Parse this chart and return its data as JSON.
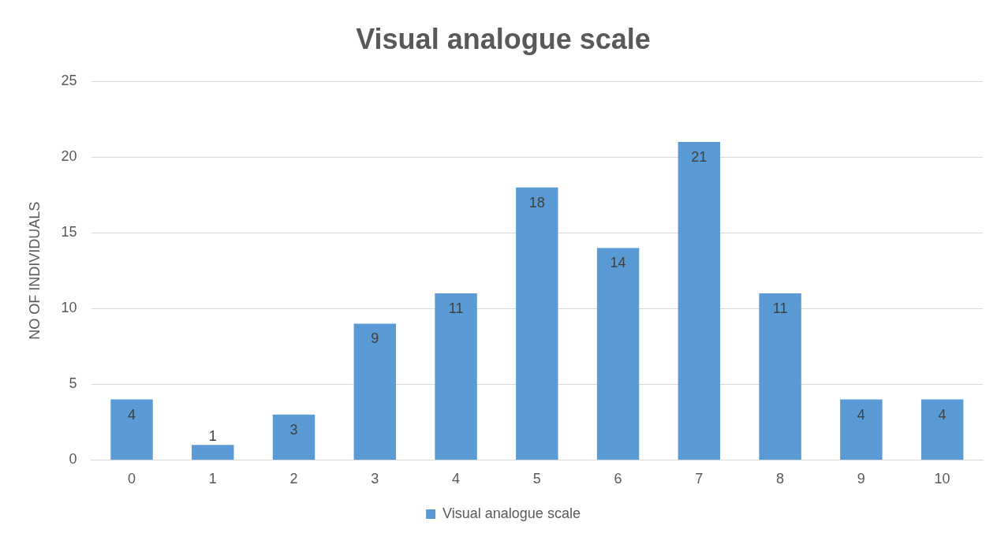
{
  "chart_data": {
    "type": "bar",
    "title": "Visual analogue scale",
    "ylabel": "NO OF INDIVIDUALS",
    "categories": [
      "0",
      "1",
      "2",
      "3",
      "4",
      "5",
      "6",
      "7",
      "8",
      "9",
      "10"
    ],
    "series": [
      {
        "name": "Visual analogue scale",
        "color": "#5b9bd5",
        "values": [
          4,
          1,
          3,
          9,
          11,
          18,
          14,
          21,
          11,
          4,
          4
        ]
      }
    ],
    "ylim": [
      0,
      25
    ],
    "yticks": [
      0,
      5,
      10,
      15,
      20,
      25
    ],
    "grid": "y",
    "legend": "bottom",
    "data_labels": true
  }
}
